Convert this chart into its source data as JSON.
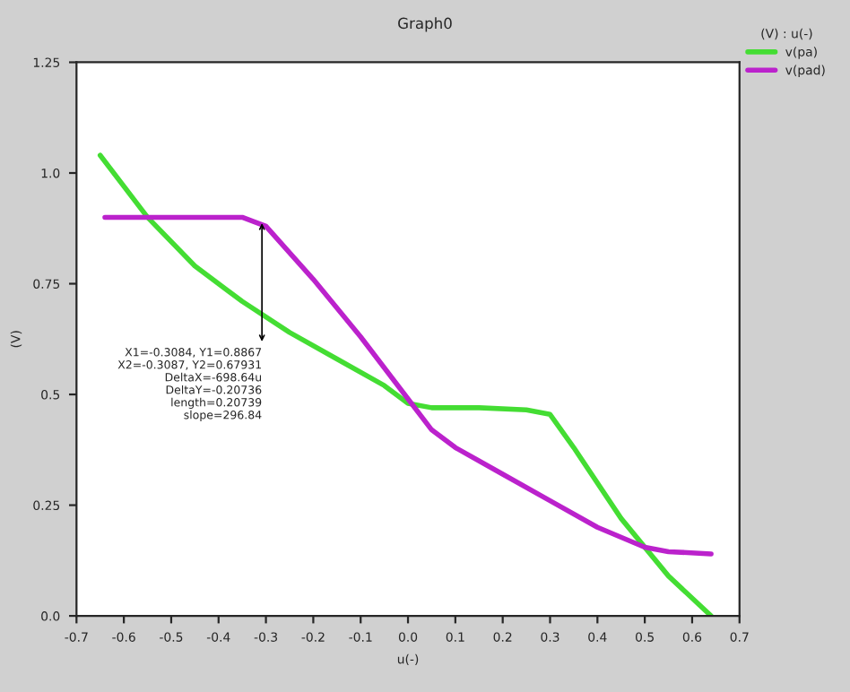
{
  "chart_data": {
    "type": "line",
    "title": "Graph0",
    "xlabel": "u(-)",
    "ylabel": "(V)",
    "legend_title": "(V) : u(-)",
    "legend": "right",
    "grid": false,
    "marker": "none",
    "line_style": "solid",
    "xlim": [
      -0.7,
      0.7
    ],
    "xticks": [
      -0.7,
      -0.6,
      -0.5,
      -0.4,
      -0.3,
      -0.2,
      -0.1,
      {
        "value": 0,
        "label": "0.0"
      },
      0.1,
      0.2,
      0.3,
      0.4,
      0.5,
      0.6,
      0.7
    ],
    "ylim": [
      0,
      1.25
    ],
    "yticks": [
      {
        "value": 0,
        "label": "0.0"
      },
      0.25,
      0.5,
      0.75,
      {
        "value": 1,
        "label": "1.0"
      },
      1.25
    ],
    "series": [
      {
        "name": "v(pa)",
        "color": "#44dd33",
        "x": [
          -0.65,
          -0.55,
          -0.45,
          -0.35,
          -0.25,
          -0.15,
          -0.05,
          0.0,
          0.05,
          0.15,
          0.25,
          0.3,
          0.35,
          0.45,
          0.55,
          0.64
        ],
        "values": [
          1.04,
          0.9,
          0.79,
          0.71,
          0.64,
          0.58,
          0.52,
          0.48,
          0.47,
          0.47,
          0.465,
          0.455,
          0.38,
          0.22,
          0.09,
          0.0
        ]
      },
      {
        "name": "v(pad)",
        "color": "#bb22cc",
        "x": [
          -0.64,
          -0.5,
          -0.35,
          -0.3,
          -0.2,
          -0.1,
          0.0,
          0.05,
          0.1,
          0.2,
          0.3,
          0.4,
          0.5,
          0.55,
          0.64
        ],
        "values": [
          0.9,
          0.9,
          0.9,
          0.88,
          0.76,
          0.63,
          0.49,
          0.42,
          0.38,
          0.32,
          0.26,
          0.2,
          0.155,
          0.145,
          0.14
        ]
      }
    ],
    "annotations": [
      {
        "text": "X1=-0.3084, Y1=0.8867\nX2=-0.3087, Y2=0.67931\nDeltaX=-698.64u\nDeltaY=-0.20736\nlength=0.20739\nslope=296.84",
        "x": -0.3084,
        "y": 0.8867
      }
    ]
  }
}
